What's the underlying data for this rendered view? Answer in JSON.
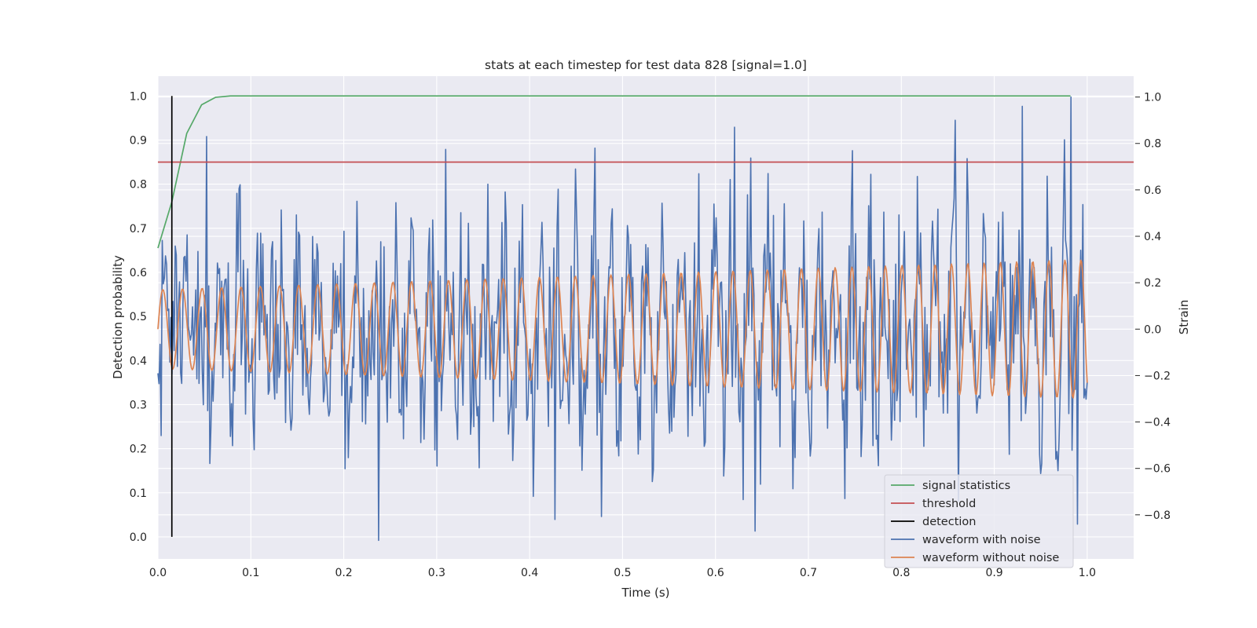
{
  "chart_data": {
    "type": "line",
    "title": "stats at each timestep for test data 828 [signal=1.0]",
    "xlabel": "Time (s)",
    "ylabel": "Detection probability",
    "y2label": "Strain",
    "xlim": [
      0.0,
      1.05
    ],
    "ylim": [
      -0.05,
      1.045
    ],
    "y2lim": [
      -0.99,
      1.09
    ],
    "xticks": [
      "0.0",
      "0.1",
      "0.2",
      "0.3",
      "0.4",
      "0.5",
      "0.6",
      "0.7",
      "0.8",
      "0.9",
      "1.0"
    ],
    "yticks": [
      "0.0",
      "0.1",
      "0.2",
      "0.3",
      "0.4",
      "0.5",
      "0.6",
      "0.7",
      "0.8",
      "0.9",
      "1.0"
    ],
    "y2ticks": [
      "−0.8",
      "−0.6",
      "−0.4",
      "−0.2",
      "0.0",
      "0.2",
      "0.4",
      "0.6",
      "0.8",
      "1.0"
    ],
    "grid": true,
    "legend_position": "lower-right",
    "legend": [
      {
        "label": "signal statistics",
        "color": "#55a868"
      },
      {
        "label": "threshold",
        "color": "#c44e52"
      },
      {
        "label": "detection",
        "color": "#000000"
      },
      {
        "label": "waveform with noise",
        "color": "#4c72b0"
      },
      {
        "label": "waveform without noise",
        "color": "#dd8452"
      }
    ],
    "series": [
      {
        "name": "signal statistics",
        "axis": "left",
        "color": "#55a868",
        "x": [
          0.0,
          0.015,
          0.031,
          0.047,
          0.062,
          0.078,
          0.1,
          0.2,
          0.3,
          0.4,
          0.5,
          0.6,
          0.7,
          0.8,
          0.9,
          0.982
        ],
        "y": [
          0.655,
          0.76,
          0.915,
          0.98,
          0.997,
          1.0,
          1.0,
          1.0,
          1.0,
          1.0,
          1.0,
          1.0,
          1.0,
          1.0,
          1.0,
          1.0
        ]
      },
      {
        "name": "threshold",
        "axis": "left",
        "color": "#c44e52",
        "x": [
          0.0,
          1.05
        ],
        "y": [
          0.85,
          0.85
        ]
      },
      {
        "name": "detection",
        "axis": "left",
        "color": "#000000",
        "x": [
          0.015,
          0.015
        ],
        "y": [
          0.0,
          1.0
        ]
      },
      {
        "name": "waveform with noise",
        "axis": "right",
        "color": "#4c72b0",
        "generated": true,
        "points": 860,
        "x_range": [
          0.0,
          1.0
        ],
        "amplitude": 0.24,
        "seed": 828,
        "peaks": [
          {
            "x": 0.052,
            "y": 0.83
          },
          {
            "x": 0.237,
            "y": -0.91
          },
          {
            "x": 0.427,
            "y": -0.82
          },
          {
            "x": 0.47,
            "y": 0.78
          },
          {
            "x": 0.62,
            "y": 0.87
          },
          {
            "x": 0.643,
            "y": -0.87
          },
          {
            "x": 0.858,
            "y": 0.9
          },
          {
            "x": 0.93,
            "y": 0.96
          },
          {
            "x": 0.982,
            "y": 1.0
          },
          {
            "x": 0.99,
            "y": -0.84
          }
        ]
      },
      {
        "name": "waveform without noise",
        "axis": "right",
        "color": "#dd8452",
        "generated": true,
        "points": 1000,
        "x_range": [
          0.0,
          1.0
        ],
        "cycles": 47,
        "amplitude_start": 0.17,
        "amplitude_end": 0.3
      }
    ]
  }
}
